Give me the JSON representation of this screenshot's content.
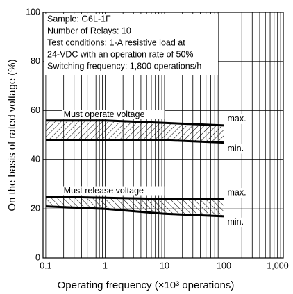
{
  "chart_data": {
    "type": "line",
    "xlabel": "Operating frequency (×10³ operations)",
    "ylabel": "On the basis of rated voltage (%)",
    "xscale": "log",
    "xlim": [
      0.09,
      1000
    ],
    "ylim": [
      0,
      100
    ],
    "xticks": [
      0.1,
      1,
      10,
      100,
      {
        "value": 1000,
        "label": "1,000"
      }
    ],
    "yticks": [
      0,
      20,
      40,
      60,
      80,
      100
    ],
    "xgrid": [
      0.2,
      0.3,
      0.4,
      0.5,
      0.6,
      0.7,
      0.8,
      0.9,
      2,
      3,
      4,
      5,
      6,
      7,
      8,
      9,
      20,
      30,
      40,
      50,
      60,
      70,
      80,
      90,
      200,
      300,
      400,
      500,
      600,
      700,
      800,
      900
    ],
    "x": [
      0.1,
      1,
      10,
      100
    ],
    "bands": [
      {
        "name": "Must operate voltage",
        "color": "#000000",
        "max": [
          56,
          56,
          55,
          54
        ],
        "min": [
          48,
          48,
          48,
          47
        ],
        "max_label": "max.",
        "min_label": "min."
      },
      {
        "name": "Must release voltage",
        "color": "#000000",
        "max": [
          25,
          24.5,
          24,
          24
        ],
        "min": [
          21,
          20,
          18,
          17
        ],
        "max_label": "max.",
        "min_label": "min."
      }
    ],
    "annotations": [
      "Sample: G6L-1F",
      "Number of Relays: 10",
      "Test conditions: 1-A resistive load at",
      "24-VDC with an operation rate of 50%",
      "Switching frequency: 1,800 operations/h"
    ]
  }
}
